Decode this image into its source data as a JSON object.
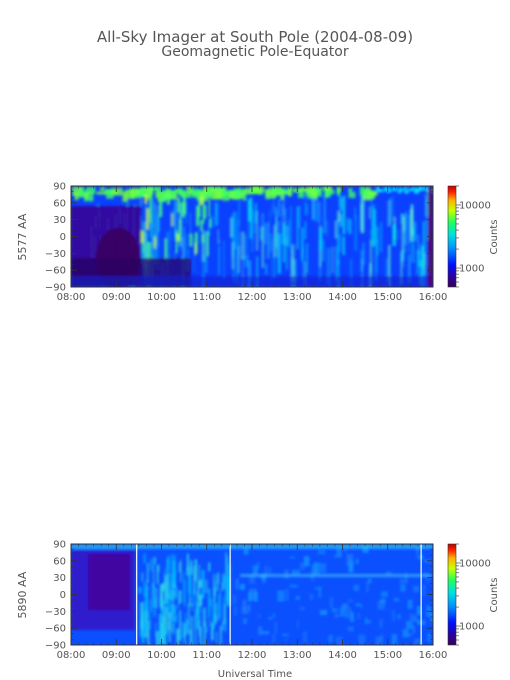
{
  "title": {
    "line1": "All-Sky Imager at South Pole (2004-08-09)",
    "line2": "Geomagnetic Pole-Equator"
  },
  "xlabel": "Universal Time",
  "chart_data": [
    {
      "type": "heatmap",
      "ylabel": "5577 AA",
      "x_ticks": [
        "08:00",
        "09:00",
        "10:00",
        "11:00",
        "12:00",
        "13:00",
        "14:00",
        "15:00",
        "16:00"
      ],
      "y_ticks": [
        90,
        60,
        30,
        0,
        -30,
        -60,
        -90
      ],
      "xlim": [
        "08:00",
        "16:00"
      ],
      "ylim": [
        -90,
        90
      ],
      "colorbar": {
        "label": "Counts",
        "scale": "log",
        "ticks": [
          10000,
          1000
        ],
        "tick_labels": [
          "10000",
          "1000"
        ]
      },
      "colormap": [
        "#3a0058",
        "#2a00a0",
        "#0010ff",
        "#0090ff",
        "#00e0e0",
        "#20ff60",
        "#c8ff00",
        "#ffb000",
        "#ff2000",
        "#c00000"
      ]
    },
    {
      "type": "heatmap",
      "ylabel": "5890 AA",
      "x_ticks": [
        "08:00",
        "09:00",
        "10:00",
        "11:00",
        "12:00",
        "13:00",
        "14:00",
        "15:00",
        "16:00"
      ],
      "y_ticks": [
        90,
        60,
        30,
        0,
        -30,
        -60,
        -90
      ],
      "xlim": [
        "08:00",
        "16:00"
      ],
      "ylim": [
        -90,
        90
      ],
      "colorbar": {
        "label": "Counts",
        "scale": "log",
        "ticks": [
          10000,
          1000
        ],
        "tick_labels": [
          "10000",
          "1000"
        ]
      },
      "colormap": [
        "#3a0058",
        "#2a00a0",
        "#0010ff",
        "#0090ff",
        "#00e0e0",
        "#20ff60",
        "#c8ff00",
        "#ffb000",
        "#ff2000",
        "#c00000"
      ]
    }
  ]
}
